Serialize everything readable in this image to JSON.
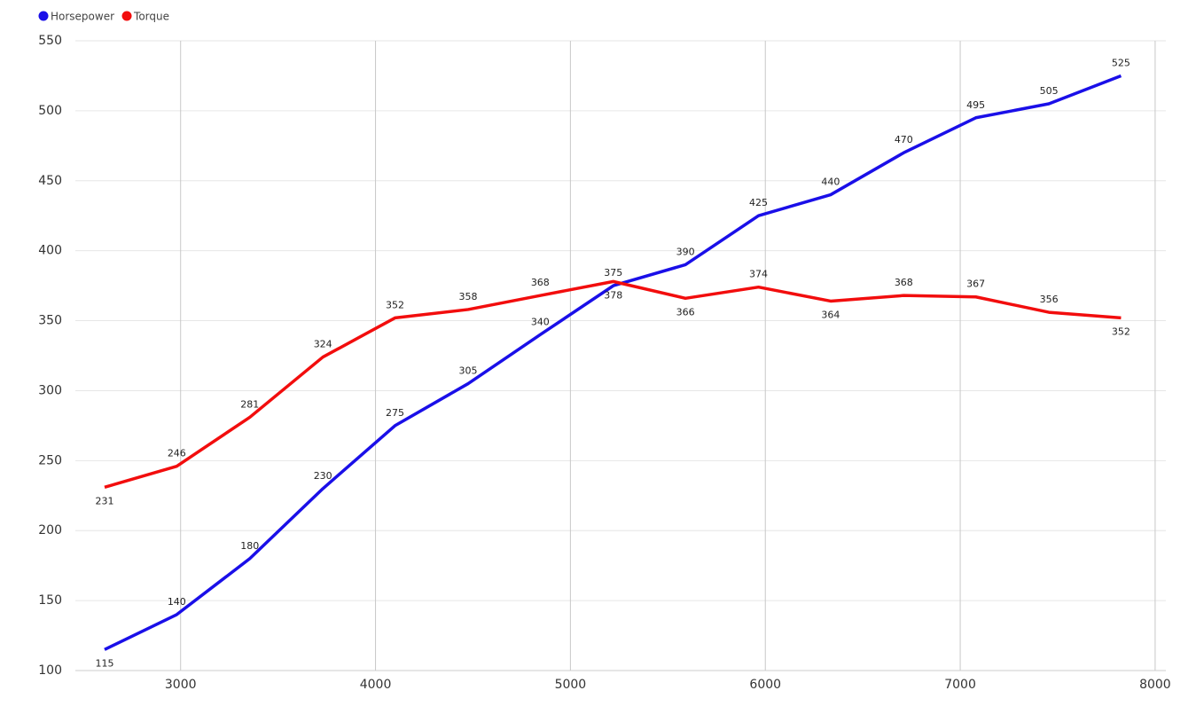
{
  "chart_data": {
    "type": "line",
    "x": [
      2610,
      2980,
      3355,
      3730,
      4100,
      4475,
      4845,
      5220,
      5590,
      5965,
      6335,
      6710,
      7080,
      7455,
      7825
    ],
    "series": [
      {
        "name": "Horsepower",
        "color": "#1a0fe8",
        "values": [
          115,
          140,
          180,
          230,
          275,
          305,
          340,
          375,
          390,
          425,
          440,
          470,
          495,
          505,
          525
        ]
      },
      {
        "name": "Torque",
        "color": "#f20d0d",
        "values": [
          231,
          246,
          281,
          324,
          352,
          358,
          368,
          378,
          366,
          374,
          364,
          368,
          367,
          356,
          352
        ]
      }
    ],
    "xlim": [
      2460,
      8055
    ],
    "xticks": [
      3000,
      4000,
      5000,
      6000,
      7000,
      8000
    ],
    "ylim": [
      100,
      550
    ],
    "yticks": [
      100,
      150,
      200,
      250,
      300,
      350,
      400,
      450,
      500,
      550
    ],
    "grid": true,
    "legend": "top-left"
  }
}
